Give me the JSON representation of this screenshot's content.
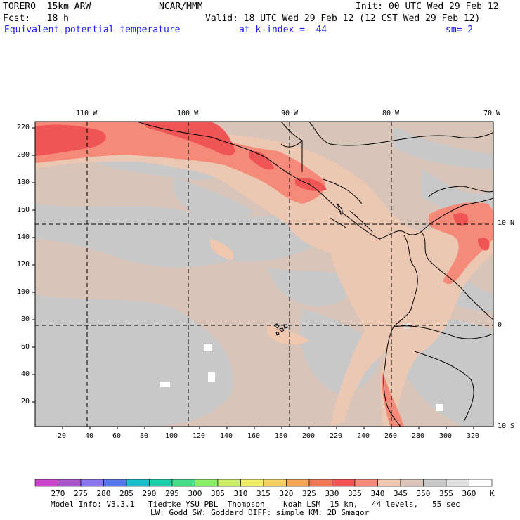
{
  "header": {
    "line1_left": "TORERO  15km ARW",
    "line1_center": "NCAR/MMM",
    "line1_right": "Init: 00 UTC Wed 29 Feb 12",
    "line2_left": "Fcst:   18 h",
    "line2_right": "Valid: 18 UTC Wed 29 Feb 12 (12 CST Wed 29 Feb 12)",
    "field_name": "Equivalent potential temperature",
    "level": "at k-index =  44",
    "smoothing": "sm= 2"
  },
  "map": {
    "lon_labels": [
      "110 W",
      "100 W",
      "90 W",
      "80 W",
      "70 W"
    ],
    "lat_labels": [
      "10 N",
      "0",
      "10 S"
    ],
    "y_ticks": [
      "220",
      "200",
      "180",
      "160",
      "140",
      "120",
      "100",
      "80",
      "60",
      "40",
      "20"
    ],
    "x_ticks": [
      "20",
      "40",
      "60",
      "80",
      "100",
      "120",
      "140",
      "160",
      "180",
      "200",
      "220",
      "240",
      "260",
      "280",
      "300",
      "320"
    ]
  },
  "colorbar": {
    "labels": [
      "270",
      "275",
      "280",
      "285",
      "290",
      "295",
      "300",
      "305",
      "310",
      "315",
      "320",
      "325",
      "330",
      "335",
      "340",
      "345",
      "350",
      "355",
      "360"
    ],
    "unit": "K",
    "colors": [
      "#cc44cc",
      "#a855cc",
      "#8877ee",
      "#5577ee",
      "#22bbcc",
      "#22ccaa",
      "#44dd88",
      "#88ee66",
      "#ccee66",
      "#eeee66",
      "#f5d060",
      "#f5a555",
      "#f07755",
      "#f05555",
      "#f58a78",
      "#f0c8b0",
      "#d8c4b8",
      "#c8c8c8",
      "#e0e0e0",
      "#ffffff"
    ]
  },
  "footer": {
    "line1": "Model Info: V3.3.1   Tiedtke YSU PBL  Thompson    Noah LSM  15 km,   44 levels,   55 sec",
    "line2": "LW: Godd SW: Goddard DIFF: simple KM: 2D Smagor"
  }
}
